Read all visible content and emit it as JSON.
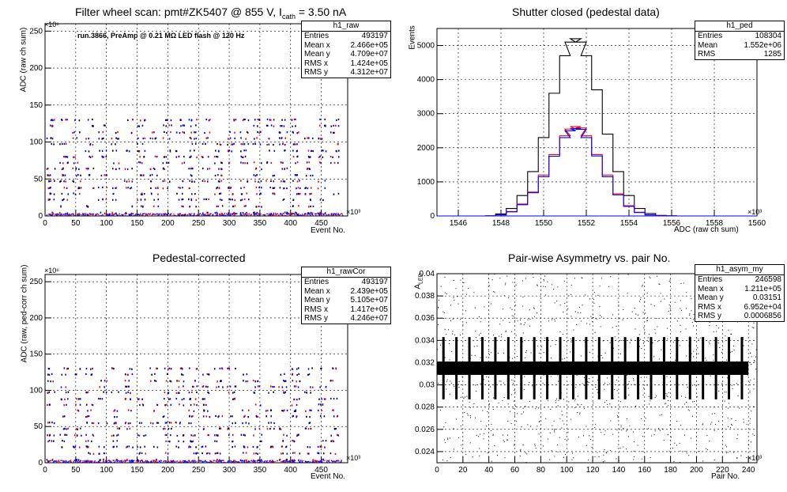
{
  "chart_data": [
    {
      "type": "scatter",
      "title": "Filter wheel scan: pmt#ZK5407 @   855 V, I",
      "title_sub": "cath",
      "title_tail": " = 3.50 nA",
      "annotation": "run.3866, PreAmp @ 0.21 MΩ LED flash @  120 Hz",
      "xlabel": "Event No.",
      "ylabel": "ADC (raw ch sum)",
      "x_exponent": "×10³",
      "y_exponent": "×10⁶",
      "xlim": [
        0,
        493
      ],
      "ylim": [
        0,
        260
      ],
      "xticks": [
        "0",
        "50",
        "100",
        "150",
        "200",
        "250",
        "300",
        "350",
        "400",
        "450"
      ],
      "yticks": [
        "0",
        "50",
        "100",
        "150",
        "200",
        "250"
      ],
      "grid": true,
      "levels": [
        4,
        13,
        22,
        30,
        38,
        47,
        55,
        64,
        72,
        80,
        88,
        97,
        105,
        113,
        122,
        130
      ],
      "stats": {
        "name": "h1_raw",
        "rows": [
          [
            "Entries",
            "493197"
          ],
          [
            "Mean x",
            "2.466e+05"
          ],
          [
            "Mean y",
            "4.709e+07"
          ],
          [
            "RMS x",
            "1.424e+05"
          ],
          [
            "RMS y",
            "4.312e+07"
          ]
        ]
      }
    },
    {
      "type": "line",
      "title": "Shutter closed (pedestal data)",
      "xlabel": "ADC (raw ch sum)",
      "ylabel": "Events",
      "x_exponent": "×10³",
      "xlim": [
        1545,
        1560
      ],
      "ylim": [
        0,
        5500
      ],
      "xticks": [
        "1546",
        "1548",
        "1550",
        "1552",
        "1554",
        "1556",
        "1558",
        "1560"
      ],
      "yticks": [
        "0",
        "1000",
        "2000",
        "3000",
        "4000",
        "5000"
      ],
      "grid": true,
      "series": [
        {
          "color": "#000000",
          "x": [
            1547.5,
            1548,
            1548.5,
            1549,
            1549.5,
            1550,
            1550.5,
            1551,
            1551.25,
            1551.5,
            1551.75,
            1552,
            1552.5,
            1553,
            1553.5,
            1554,
            1554.5,
            1555,
            1555.5,
            1556
          ],
          "y": [
            5,
            60,
            220,
            600,
            1300,
            2300,
            3600,
            4700,
            5100,
            5200,
            5100,
            4700,
            3700,
            2400,
            1300,
            600,
            220,
            70,
            15,
            5
          ]
        },
        {
          "color": "#ff0000",
          "x": [
            1547.5,
            1548,
            1548.5,
            1549,
            1549.5,
            1550,
            1550.5,
            1551,
            1551.25,
            1551.5,
            1551.75,
            1552,
            1552.5,
            1553,
            1553.5,
            1554,
            1554.5,
            1555,
            1555.5,
            1556
          ],
          "y": [
            3,
            35,
            130,
            350,
            700,
            1200,
            1800,
            2350,
            2550,
            2620,
            2580,
            2350,
            1800,
            1200,
            650,
            300,
            110,
            35,
            8,
            2
          ]
        },
        {
          "color": "#0000ff",
          "x": [
            1547.5,
            1548,
            1548.5,
            1549,
            1549.5,
            1550,
            1550.5,
            1551,
            1551.25,
            1551.5,
            1551.75,
            1552,
            1552.5,
            1553,
            1553.5,
            1554,
            1554.5,
            1555,
            1555.5,
            1556
          ],
          "y": [
            2,
            30,
            120,
            330,
            680,
            1150,
            1750,
            2300,
            2500,
            2560,
            2540,
            2300,
            1760,
            1150,
            620,
            280,
            100,
            30,
            6,
            2
          ]
        }
      ],
      "stats": {
        "name": "h1_ped",
        "rows": [
          [
            "Entries",
            "108304"
          ],
          [
            "Mean",
            "1.552e+06"
          ],
          [
            "RMS",
            "1285"
          ]
        ]
      }
    },
    {
      "type": "scatter",
      "title": "Pedestal-corrected",
      "xlabel": "Event No.",
      "ylabel": "ADC (raw, ped-corr ch sum)",
      "x_exponent": "×10³",
      "y_exponent": "×10⁶",
      "xlim": [
        0,
        493
      ],
      "ylim": [
        0,
        260
      ],
      "xticks": [
        "0",
        "50",
        "100",
        "150",
        "200",
        "250",
        "300",
        "350",
        "400",
        "450"
      ],
      "yticks": [
        "0",
        "50",
        "100",
        "150",
        "200",
        "250"
      ],
      "grid": true,
      "levels": [
        4,
        13,
        22,
        30,
        38,
        47,
        55,
        64,
        72,
        80,
        88,
        97,
        105,
        113,
        122,
        130
      ],
      "stats": {
        "name": "h1_rawCor",
        "rows": [
          [
            "Entries",
            "493197"
          ],
          [
            "Mean x",
            "2.439e+05"
          ],
          [
            "Mean y",
            "5.105e+07"
          ],
          [
            "RMS x",
            "1.417e+05"
          ],
          [
            "RMS y",
            "4.246e+07"
          ]
        ]
      }
    },
    {
      "type": "scatter",
      "title": "Pair-wise Asymmetry vs. pair No.",
      "xlabel": "Pair No.",
      "ylabel": "A",
      "ylabel_sub": "LED",
      "x_exponent": "×10³",
      "xlim": [
        0,
        246.6
      ],
      "ylim": [
        0.023,
        0.04
      ],
      "xticks": [
        "0",
        "20",
        "40",
        "60",
        "80",
        "100",
        "120",
        "140",
        "160",
        "180",
        "200",
        "220",
        "240"
      ],
      "yticks": [
        "0.024",
        "0.026",
        "0.028",
        "0.03",
        "0.032",
        "0.034",
        "0.036",
        "0.038",
        "0.04"
      ],
      "grid": true,
      "band_center": 0.0315,
      "band_halfwidth": 0.0006,
      "spike_count": 24,
      "stats": {
        "name": "h1_asym_my",
        "rows": [
          [
            "Entries",
            "246598"
          ],
          [
            "Mean x",
            "1.211e+05"
          ],
          [
            "Mean y",
            "0.03151"
          ],
          [
            "RMS x",
            "6.952e+04"
          ],
          [
            "RMS y",
            "0.0006856"
          ]
        ]
      }
    }
  ]
}
